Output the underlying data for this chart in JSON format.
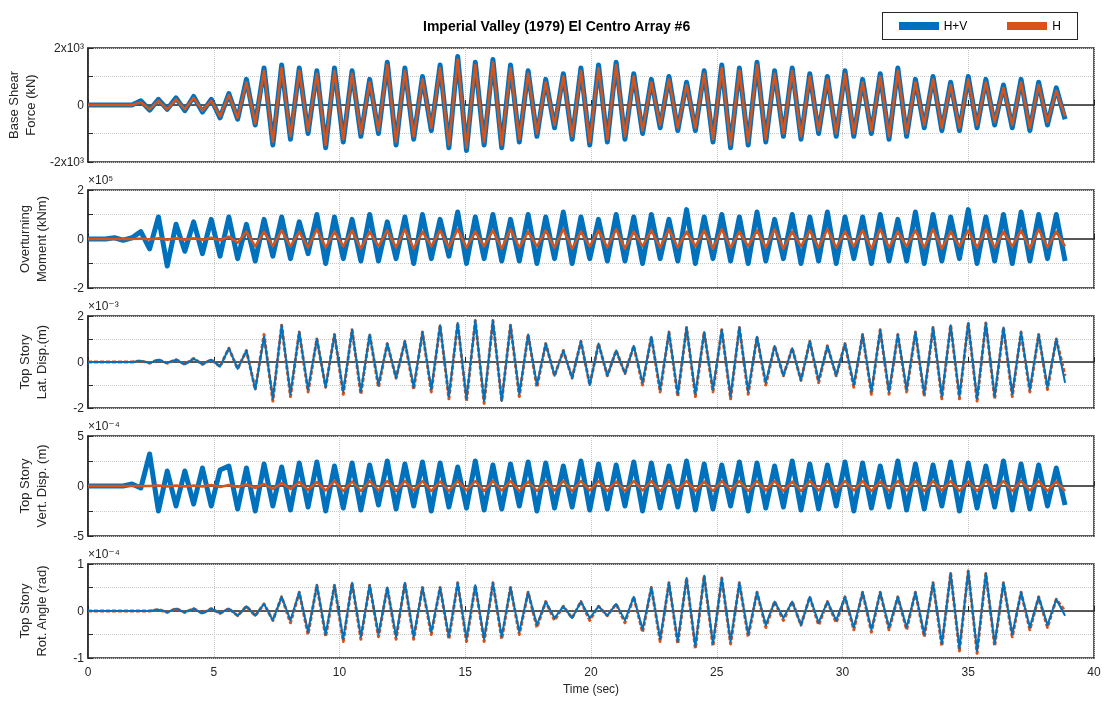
{
  "chart_data": [
    {
      "type": "line",
      "title": "Imperial Valley (1979) El Centro Array #6",
      "ylabel": "Base Shear\nForce (kN)",
      "legend": "top right",
      "grid": true,
      "tick_labels": "y",
      "xlim": [
        0,
        40
      ],
      "xticks": [
        0,
        5,
        10,
        15,
        20,
        25,
        30,
        35,
        40
      ],
      "ylim": [
        -2000,
        2000
      ],
      "yticks": [
        {
          "value": -2000,
          "label": "-2x10³"
        },
        {
          "value": -1000,
          "label": null
        },
        0,
        {
          "value": 1000,
          "label": null
        },
        {
          "value": 2000,
          "label": "2x10³"
        }
      ],
      "x": [
        0,
        0.35,
        0.7,
        1.05,
        1.4,
        1.75,
        2.1,
        2.45,
        2.8,
        3.15,
        3.5,
        3.85,
        4.2,
        4.55,
        4.9,
        5.25,
        5.6,
        5.95,
        6.3,
        6.65,
        7,
        7.35,
        7.7,
        8.05,
        8.4,
        8.75,
        9.1,
        9.45,
        9.8,
        10.15,
        10.5,
        10.85,
        11.2,
        11.55,
        11.9,
        12.25,
        12.6,
        12.95,
        13.3,
        13.65,
        14,
        14.35,
        14.7,
        15.05,
        15.4,
        15.75,
        16.1,
        16.45,
        16.8,
        17.15,
        17.5,
        17.85,
        18.2,
        18.55,
        18.9,
        19.25,
        19.6,
        19.95,
        20.3,
        20.65,
        21,
        21.35,
        21.7,
        22.05,
        22.4,
        22.75,
        23.1,
        23.45,
        23.8,
        24.15,
        24.5,
        24.85,
        25.2,
        25.55,
        25.9,
        26.25,
        26.6,
        26.95,
        27.3,
        27.65,
        28,
        28.35,
        28.7,
        29.05,
        29.4,
        29.75,
        30.1,
        30.45,
        30.8,
        31.15,
        31.5,
        31.85,
        32.2,
        32.55,
        32.9,
        33.25,
        33.6,
        33.95,
        34.3,
        34.65,
        35,
        35.35,
        35.7,
        36.05,
        36.4,
        36.75,
        37.1,
        37.45,
        37.8,
        38.15,
        38.5,
        38.85
      ],
      "series": [
        {
          "name": "H+V",
          "color": "#0072bd",
          "values": [
            0,
            0,
            0,
            0,
            0,
            0,
            150,
            -180,
            200,
            -150,
            250,
            -200,
            300,
            -250,
            200,
            -450,
            400,
            -500,
            900,
            -700,
            1300,
            -1400,
            1400,
            -1200,
            1300,
            -1000,
            1200,
            -1500,
            1300,
            -1300,
            1200,
            -1100,
            900,
            -1000,
            1500,
            -1400,
            1300,
            -1200,
            1000,
            -900,
            1400,
            -1500,
            1700,
            -1600,
            1500,
            -1400,
            1600,
            -1500,
            1400,
            -1300,
            1200,
            -1100,
            900,
            -800,
            1100,
            -1200,
            1300,
            -1400,
            1400,
            -1300,
            1500,
            -1200,
            1100,
            -1000,
            900,
            -800,
            1000,
            -900,
            800,
            -900,
            1200,
            -1300,
            1400,
            -1500,
            1300,
            -1400,
            1500,
            -1300,
            1200,
            -1100,
            1300,
            -1200,
            1100,
            -1000,
            1000,
            -1100,
            1200,
            -1100,
            900,
            -1000,
            1100,
            -1200,
            1300,
            -1100,
            900,
            -800,
            1000,
            -900,
            800,
            -900,
            1000,
            -800,
            900,
            -700,
            700,
            -800,
            900,
            -900,
            800,
            -700,
            600,
            -500
          ]
        },
        {
          "name": "H",
          "color": "#d95319",
          "values": [
            0,
            0,
            0,
            0,
            0,
            0,
            100,
            -150,
            150,
            -150,
            200,
            -150,
            250,
            -200,
            150,
            -400,
            350,
            -450,
            800,
            -650,
            1200,
            -1300,
            1300,
            -1100,
            1200,
            -900,
            1100,
            -1400,
            1200,
            -1200,
            1100,
            -1000,
            800,
            -900,
            1400,
            -1300,
            1200,
            -1100,
            900,
            -800,
            1300,
            -1400,
            1600,
            -1500,
            1400,
            -1300,
            1500,
            -1400,
            1300,
            -1200,
            1100,
            -1000,
            800,
            -700,
            1000,
            -1100,
            1200,
            -1300,
            1300,
            -1200,
            1400,
            -1100,
            1000,
            -900,
            800,
            -700,
            900,
            -800,
            700,
            -800,
            1100,
            -1200,
            1300,
            -1400,
            1200,
            -1300,
            1400,
            -1200,
            1100,
            -1000,
            1200,
            -1100,
            1000,
            -900,
            900,
            -1000,
            1100,
            -1000,
            800,
            -900,
            1000,
            -1100,
            1200,
            -1000,
            800,
            -700,
            900,
            -800,
            700,
            -800,
            900,
            -700,
            800,
            -600,
            600,
            -700,
            800,
            -800,
            700,
            -600,
            500,
            -400
          ]
        }
      ]
    },
    {
      "type": "line",
      "ylabel": "Overturning\nMoment (kNm)",
      "annotations": [
        "×10⁵"
      ],
      "grid": true,
      "tick_labels": "y",
      "xlim": [
        0,
        40
      ],
      "xticks": [
        0,
        5,
        10,
        15,
        20,
        25,
        30,
        35,
        40
      ],
      "ylim": [
        -2,
        2
      ],
      "yticks": [
        -2,
        {
          "value": -1,
          "label": null
        },
        0,
        {
          "value": 1,
          "label": null
        },
        2
      ],
      "x": [
        0,
        0.35,
        0.7,
        1.05,
        1.4,
        1.75,
        2.1,
        2.45,
        2.8,
        3.15,
        3.5,
        3.85,
        4.2,
        4.55,
        4.9,
        5.25,
        5.6,
        5.95,
        6.3,
        6.65,
        7,
        7.35,
        7.7,
        8.05,
        8.4,
        8.75,
        9.1,
        9.45,
        9.8,
        10.15,
        10.5,
        10.85,
        11.2,
        11.55,
        11.9,
        12.25,
        12.6,
        12.95,
        13.3,
        13.65,
        14,
        14.35,
        14.7,
        15.05,
        15.4,
        15.75,
        16.1,
        16.45,
        16.8,
        17.15,
        17.5,
        17.85,
        18.2,
        18.55,
        18.9,
        19.25,
        19.6,
        19.95,
        20.3,
        20.65,
        21,
        21.35,
        21.7,
        22.05,
        22.4,
        22.75,
        23.1,
        23.45,
        23.8,
        24.15,
        24.5,
        24.85,
        25.2,
        25.55,
        25.9,
        26.25,
        26.6,
        26.95,
        27.3,
        27.65,
        28,
        28.35,
        28.7,
        29.05,
        29.4,
        29.75,
        30.1,
        30.45,
        30.8,
        31.15,
        31.5,
        31.85,
        32.2,
        32.55,
        32.9,
        33.25,
        33.6,
        33.95,
        34.3,
        34.65,
        35,
        35.35,
        35.7,
        36.05,
        36.4,
        36.75,
        37.1,
        37.45,
        37.8,
        38.15,
        38.5,
        38.85
      ],
      "series": [
        {
          "color": "#0072bd",
          "values": [
            0,
            0,
            0,
            0.05,
            -0.05,
            0.05,
            0.3,
            -0.4,
            0.9,
            -1.1,
            0.6,
            -0.5,
            0.7,
            -0.6,
            0.8,
            -0.7,
            0.9,
            -0.8,
            0.6,
            -0.9,
            0.8,
            -0.7,
            0.9,
            -0.8,
            0.7,
            -0.6,
            1.0,
            -1.0,
            0.9,
            -0.8,
            0.8,
            -0.9,
            1.0,
            -0.9,
            0.7,
            -0.8,
            0.9,
            -1.0,
            1.0,
            -0.8,
            0.8,
            -0.7,
            1.1,
            -1.0,
            0.9,
            -0.8,
            1.0,
            -0.9,
            0.8,
            -0.9,
            1.0,
            -1.0,
            0.9,
            -0.8,
            1.1,
            -1.0,
            0.9,
            -0.8,
            0.8,
            -0.9,
            1.0,
            -0.9,
            0.9,
            -1.0,
            1.0,
            -0.8,
            0.8,
            -0.9,
            1.2,
            -1.0,
            0.9,
            -0.8,
            1.0,
            -0.9,
            0.9,
            -1.0,
            1.1,
            -0.9,
            0.8,
            -0.8,
            1.0,
            -1.0,
            0.9,
            -0.9,
            1.1,
            -1.0,
            0.9,
            -0.8,
            0.9,
            -1.0,
            1.0,
            -0.9,
            0.8,
            -0.9,
            1.1,
            -1.0,
            1.0,
            -0.9,
            0.9,
            -0.8,
            1.2,
            -1.0,
            0.9,
            -0.9,
            1.0,
            -1.0,
            1.1,
            -0.9,
            1.0,
            -0.8,
            1.0,
            -0.9
          ]
        },
        {
          "color": "#d95319",
          "values": [
            0,
            0,
            0,
            0,
            0,
            0,
            0.02,
            -0.02,
            0.03,
            -0.03,
            0.03,
            -0.03,
            0.03,
            -0.03,
            0.05,
            -0.05,
            0.1,
            -0.15,
            0.3,
            -0.3,
            0.3,
            -0.3,
            0.35,
            -0.3,
            0.3,
            -0.35,
            0.4,
            -0.35,
            0.3,
            -0.3,
            0.35,
            -0.4,
            0.3,
            -0.3,
            0.35,
            -0.35,
            0.4,
            -0.4,
            0.3,
            -0.3,
            0.35,
            -0.35,
            0.4,
            -0.35,
            0.3,
            -0.3,
            0.35,
            -0.4,
            0.4,
            -0.35,
            0.3,
            -0.3,
            0.35,
            -0.35,
            0.4,
            -0.4,
            0.3,
            -0.3,
            0.35,
            -0.35,
            0.4,
            -0.4,
            0.3,
            -0.3,
            0.35,
            -0.35,
            0.4,
            -0.35,
            0.3,
            -0.3,
            0.35,
            -0.4,
            0.4,
            -0.35,
            0.3,
            -0.3,
            0.35,
            -0.35,
            0.4,
            -0.4,
            0.3,
            -0.3,
            0.35,
            -0.35,
            0.4,
            -0.35,
            0.3,
            -0.3,
            0.35,
            -0.4,
            0.4,
            -0.35,
            0.3,
            -0.3,
            0.35,
            -0.35,
            0.4,
            -0.4,
            0.3,
            -0.3,
            0.35,
            -0.35,
            0.4,
            -0.35,
            0.3,
            -0.3,
            0.35,
            -0.4,
            0.4,
            -0.35,
            0.3,
            -0.3
          ]
        }
      ]
    },
    {
      "type": "line",
      "ylabel": "Top Story\nLat. Disp.(m)",
      "annotations": [
        "×10⁻³"
      ],
      "grid": true,
      "tick_labels": "y",
      "xlim": [
        0,
        40
      ],
      "xticks": [
        0,
        5,
        10,
        15,
        20,
        25,
        30,
        35,
        40
      ],
      "ylim": [
        -2,
        2
      ],
      "yticks": [
        -2,
        {
          "value": -1,
          "label": null
        },
        0,
        {
          "value": 1,
          "label": null
        },
        2
      ],
      "x": [
        0,
        0.35,
        0.7,
        1.05,
        1.4,
        1.75,
        2.1,
        2.45,
        2.8,
        3.15,
        3.5,
        3.85,
        4.2,
        4.55,
        4.9,
        5.25,
        5.6,
        5.95,
        6.3,
        6.65,
        7,
        7.35,
        7.7,
        8.05,
        8.4,
        8.75,
        9.1,
        9.45,
        9.8,
        10.15,
        10.5,
        10.85,
        11.2,
        11.55,
        11.9,
        12.25,
        12.6,
        12.95,
        13.3,
        13.65,
        14,
        14.35,
        14.7,
        15.05,
        15.4,
        15.75,
        16.1,
        16.45,
        16.8,
        17.15,
        17.5,
        17.85,
        18.2,
        18.55,
        18.9,
        19.25,
        19.6,
        19.95,
        20.3,
        20.65,
        21,
        21.35,
        21.7,
        22.05,
        22.4,
        22.75,
        23.1,
        23.45,
        23.8,
        24.15,
        24.5,
        24.85,
        25.2,
        25.55,
        25.9,
        26.25,
        26.6,
        26.95,
        27.3,
        27.65,
        28,
        28.35,
        28.7,
        29.05,
        29.4,
        29.75,
        30.1,
        30.45,
        30.8,
        31.15,
        31.5,
        31.85,
        32.2,
        32.55,
        32.9,
        33.25,
        33.6,
        33.95,
        34.3,
        34.65,
        35,
        35.35,
        35.7,
        36.05,
        36.4,
        36.75,
        37.1,
        37.45,
        37.8,
        38.15,
        38.5,
        38.85
      ],
      "series": [
        {
          "color": "#0072bd",
          "values": [
            0,
            0,
            0,
            0,
            0,
            0,
            0.05,
            -0.05,
            0.1,
            -0.05,
            0.1,
            -0.1,
            0.15,
            -0.1,
            0.1,
            -0.2,
            0.6,
            -0.3,
            0.5,
            -1.2,
            1.1,
            -1.6,
            1.6,
            -1.4,
            1.3,
            -1.2,
            1.0,
            -1.1,
            1.2,
            -1.3,
            1.4,
            -1.3,
            1.2,
            -1.0,
            0.8,
            -0.7,
            0.9,
            -1.1,
            1.3,
            -1.2,
            1.6,
            -1.5,
            1.7,
            -1.6,
            1.8,
            -1.7,
            1.8,
            -1.7,
            1.6,
            -1.4,
            1.2,
            -1.0,
            0.8,
            -0.6,
            0.5,
            -0.7,
            0.9,
            -1.0,
            0.8,
            -0.6,
            0.5,
            -0.5,
            0.7,
            -0.9,
            1.1,
            -1.2,
            1.3,
            -1.4,
            1.5,
            -1.4,
            1.3,
            -1.2,
            1.4,
            -1.5,
            1.5,
            -1.3,
            1.1,
            -0.9,
            0.7,
            -0.6,
            0.6,
            -0.8,
            0.9,
            -0.8,
            0.7,
            -0.6,
            0.8,
            -1.0,
            1.2,
            -1.3,
            1.4,
            -1.3,
            1.2,
            -1.2,
            1.3,
            -1.4,
            1.5,
            -1.5,
            1.6,
            -1.5,
            1.7,
            -1.6,
            1.7,
            -1.5,
            1.5,
            -1.4,
            1.3,
            -1.2,
            1.2,
            -1.1,
            1.0,
            -0.9
          ]
        },
        {
          "color": "#d95319",
          "line_style": "dashed",
          "values": [
            0,
            0,
            0,
            0,
            0,
            0,
            0.05,
            -0.05,
            0.1,
            -0.05,
            0.1,
            -0.1,
            0.15,
            -0.1,
            0.1,
            -0.2,
            0.6,
            -0.3,
            0.5,
            -1.2,
            1.2,
            -1.7,
            1.6,
            -1.5,
            1.3,
            -1.3,
            1.0,
            -1.1,
            1.2,
            -1.4,
            1.4,
            -1.4,
            1.2,
            -1.1,
            0.8,
            -0.7,
            0.9,
            -1.2,
            1.3,
            -1.3,
            1.6,
            -1.6,
            1.7,
            -1.7,
            1.8,
            -1.8,
            1.8,
            -1.7,
            1.6,
            -1.5,
            1.2,
            -1.1,
            0.8,
            -0.6,
            0.5,
            -0.7,
            0.9,
            -1.0,
            0.8,
            -0.6,
            0.5,
            -0.5,
            0.7,
            -1.0,
            1.1,
            -1.3,
            1.3,
            -1.5,
            1.5,
            -1.5,
            1.3,
            -1.3,
            1.4,
            -1.6,
            1.5,
            -1.4,
            1.1,
            -1.0,
            0.7,
            -0.6,
            0.6,
            -0.8,
            0.9,
            -0.9,
            0.7,
            -0.6,
            0.8,
            -1.1,
            1.2,
            -1.4,
            1.4,
            -1.4,
            1.2,
            -1.3,
            1.3,
            -1.5,
            1.5,
            -1.6,
            1.6,
            -1.6,
            1.7,
            -1.7,
            1.7,
            -1.6,
            1.5,
            -1.5,
            1.3,
            -1.3,
            1.2,
            -1.2,
            1.0,
            -0.6
          ]
        }
      ]
    },
    {
      "type": "line",
      "ylabel": "Top Story\nVert. Disp. (m)",
      "annotations": [
        "×10⁻⁴"
      ],
      "grid": true,
      "tick_labels": "y",
      "xlim": [
        0,
        40
      ],
      "xticks": [
        0,
        5,
        10,
        15,
        20,
        25,
        30,
        35,
        40
      ],
      "ylim": [
        -5,
        5
      ],
      "yticks": [
        -5,
        {
          "value": -2.5,
          "label": null
        },
        0,
        {
          "value": 2.5,
          "label": null
        },
        5
      ],
      "x": [
        0,
        0.35,
        0.7,
        1.05,
        1.4,
        1.75,
        2.1,
        2.45,
        2.8,
        3.15,
        3.5,
        3.85,
        4.2,
        4.55,
        4.9,
        5.25,
        5.6,
        5.95,
        6.3,
        6.65,
        7,
        7.35,
        7.7,
        8.05,
        8.4,
        8.75,
        9.1,
        9.45,
        9.8,
        10.15,
        10.5,
        10.85,
        11.2,
        11.55,
        11.9,
        12.25,
        12.6,
        12.95,
        13.3,
        13.65,
        14,
        14.35,
        14.7,
        15.05,
        15.4,
        15.75,
        16.1,
        16.45,
        16.8,
        17.15,
        17.5,
        17.85,
        18.2,
        18.55,
        18.9,
        19.25,
        19.6,
        19.95,
        20.3,
        20.65,
        21,
        21.35,
        21.7,
        22.05,
        22.4,
        22.75,
        23.1,
        23.45,
        23.8,
        24.15,
        24.5,
        24.85,
        25.2,
        25.55,
        25.9,
        26.25,
        26.6,
        26.95,
        27.3,
        27.65,
        28,
        28.35,
        28.7,
        29.05,
        29.4,
        29.75,
        30.1,
        30.45,
        30.8,
        31.15,
        31.5,
        31.85,
        32.2,
        32.55,
        32.9,
        33.25,
        33.6,
        33.95,
        34.3,
        34.65,
        35,
        35.35,
        35.7,
        36.05,
        36.4,
        36.75,
        37.1,
        37.45,
        37.8,
        38.15,
        38.5,
        38.85
      ],
      "series": [
        {
          "color": "#0072bd",
          "values": [
            0,
            0,
            0,
            0,
            0,
            0.2,
            -0.2,
            3.2,
            -2.5,
            1.5,
            -2.0,
            1.5,
            -1.8,
            1.8,
            -2.0,
            1.6,
            2.0,
            -2.3,
            1.8,
            -2.5,
            2.2,
            -2.0,
            1.9,
            -2.4,
            2.3,
            -2.1,
            2.4,
            -2.5,
            2.0,
            -2.2,
            2.3,
            -2.4,
            2.1,
            -1.9,
            2.5,
            -2.3,
            2.2,
            -2.0,
            2.4,
            -2.5,
            2.3,
            -2.1,
            1.9,
            -2.2,
            2.5,
            -2.4,
            2.1,
            -2.3,
            2.2,
            -2.0,
            2.4,
            -2.5,
            2.3,
            -2.2,
            2.0,
            -2.1,
            2.5,
            -2.4,
            2.2,
            -2.3,
            2.1,
            -2.0,
            2.4,
            -2.5,
            2.3,
            -2.2,
            2.0,
            -2.1,
            2.5,
            -2.4,
            2.2,
            -2.3,
            2.1,
            -2.0,
            2.4,
            -2.5,
            2.3,
            -2.2,
            2.0,
            -2.1,
            2.5,
            -2.4,
            2.2,
            -2.3,
            2.1,
            -2.0,
            2.4,
            -2.5,
            2.3,
            -2.2,
            2.0,
            -2.1,
            2.5,
            -2.4,
            2.2,
            -2.3,
            2.1,
            -2.0,
            2.4,
            -2.5,
            2.3,
            -2.2,
            2.0,
            -2.1,
            2.5,
            -2.4,
            2.2,
            -2.3,
            2.1,
            -2.0,
            1.8,
            -1.9
          ]
        },
        {
          "color": "#d95319",
          "values": [
            0,
            0,
            0,
            0,
            0,
            0,
            0,
            0,
            0.05,
            -0.05,
            0.05,
            -0.05,
            0.05,
            -0.05,
            0.1,
            -0.1,
            0.1,
            -0.1,
            0.15,
            -0.2,
            0.2,
            -0.3,
            0.3,
            -0.3,
            0.4,
            -0.4,
            0.4,
            -0.45,
            0.5,
            -0.5,
            0.45,
            -0.5,
            0.5,
            -0.45,
            0.5,
            -0.5,
            0.5,
            -0.45,
            0.5,
            -0.5,
            0.45,
            -0.5,
            0.5,
            -0.45,
            0.5,
            -0.5,
            0.5,
            -0.45,
            0.5,
            -0.5,
            0.45,
            -0.5,
            0.5,
            -0.45,
            0.5,
            -0.5,
            0.5,
            -0.45,
            0.5,
            -0.5,
            0.45,
            -0.5,
            0.5,
            -0.45,
            0.5,
            -0.5,
            0.5,
            -0.45,
            0.5,
            -0.5,
            0.45,
            -0.5,
            0.5,
            -0.45,
            0.5,
            -0.5,
            0.5,
            -0.45,
            0.5,
            -0.5,
            0.45,
            -0.5,
            0.5,
            -0.45,
            0.5,
            -0.5,
            0.5,
            -0.45,
            0.5,
            -0.5,
            0.45,
            -0.5,
            0.5,
            -0.45,
            0.5,
            -0.5,
            0.5,
            -0.45,
            0.5,
            -0.5,
            0.45,
            -0.5,
            0.5,
            -0.45,
            0.5,
            -0.5,
            0.5,
            -0.45,
            0.5,
            -0.5,
            0.45,
            -0.5
          ]
        }
      ]
    },
    {
      "type": "line",
      "ylabel": "Top Story\nRot. Angle (rad)",
      "xlabel": "Time (sec)",
      "annotations": [
        "×10⁻⁴"
      ],
      "grid": true,
      "xlim": [
        0,
        40
      ],
      "xticks": [
        0,
        5,
        10,
        15,
        20,
        25,
        30,
        35,
        40
      ],
      "ylim": [
        -1,
        1
      ],
      "yticks": [
        -1,
        {
          "value": -0.5,
          "label": null
        },
        0,
        {
          "value": 0.5,
          "label": null
        },
        1
      ],
      "x": [
        0,
        0.35,
        0.7,
        1.05,
        1.4,
        1.75,
        2.1,
        2.45,
        2.8,
        3.15,
        3.5,
        3.85,
        4.2,
        4.55,
        4.9,
        5.25,
        5.6,
        5.95,
        6.3,
        6.65,
        7,
        7.35,
        7.7,
        8.05,
        8.4,
        8.75,
        9.1,
        9.45,
        9.8,
        10.15,
        10.5,
        10.85,
        11.2,
        11.55,
        11.9,
        12.25,
        12.6,
        12.95,
        13.3,
        13.65,
        14,
        14.35,
        14.7,
        15.05,
        15.4,
        15.75,
        16.1,
        16.45,
        16.8,
        17.15,
        17.5,
        17.85,
        18.2,
        18.55,
        18.9,
        19.25,
        19.6,
        19.95,
        20.3,
        20.65,
        21,
        21.35,
        21.7,
        22.05,
        22.4,
        22.75,
        23.1,
        23.45,
        23.8,
        24.15,
        24.5,
        24.85,
        25.2,
        25.55,
        25.9,
        26.25,
        26.6,
        26.95,
        27.3,
        27.65,
        28,
        28.35,
        28.7,
        29.05,
        29.4,
        29.75,
        30.1,
        30.45,
        30.8,
        31.15,
        31.5,
        31.85,
        32.2,
        32.55,
        32.9,
        33.25,
        33.6,
        33.95,
        34.3,
        34.65,
        35,
        35.35,
        35.7,
        36.05,
        36.4,
        36.75,
        37.1,
        37.45,
        37.8,
        38.15,
        38.5,
        38.85
      ],
      "series": [
        {
          "color": "#0072bd",
          "values": [
            0,
            0,
            0,
            0,
            0,
            0,
            0,
            0,
            0.03,
            -0.03,
            0.05,
            -0.03,
            0.05,
            -0.05,
            0.05,
            -0.05,
            0.05,
            -0.1,
            0.1,
            -0.1,
            0.15,
            -0.2,
            0.3,
            -0.2,
            0.4,
            -0.45,
            0.55,
            -0.5,
            0.55,
            -0.6,
            0.6,
            -0.55,
            0.55,
            -0.5,
            0.5,
            -0.55,
            0.6,
            -0.55,
            0.5,
            -0.45,
            0.5,
            -0.55,
            0.6,
            -0.6,
            0.55,
            -0.6,
            0.6,
            -0.55,
            0.5,
            -0.45,
            0.4,
            -0.3,
            0.2,
            -0.15,
            0.1,
            -0.15,
            0.2,
            -0.15,
            0.1,
            -0.1,
            0.15,
            -0.2,
            0.3,
            -0.4,
            0.5,
            -0.6,
            0.6,
            -0.65,
            0.7,
            -0.75,
            0.75,
            -0.7,
            0.7,
            -0.65,
            0.6,
            -0.5,
            0.4,
            -0.3,
            0.2,
            -0.15,
            0.2,
            -0.3,
            0.3,
            -0.25,
            0.2,
            -0.2,
            0.3,
            -0.35,
            0.4,
            -0.4,
            0.4,
            -0.35,
            0.3,
            -0.35,
            0.4,
            -0.5,
            0.6,
            -0.7,
            0.8,
            -0.8,
            0.85,
            -0.85,
            0.8,
            -0.7,
            0.6,
            -0.5,
            0.4,
            -0.35,
            0.3,
            -0.3,
            0.25,
            -0.1
          ]
        },
        {
          "color": "#d95319",
          "line_style": "dashed",
          "values": [
            0,
            0,
            0,
            0,
            0,
            0,
            0,
            0,
            0.03,
            -0.03,
            0.05,
            -0.03,
            0.05,
            -0.05,
            0.05,
            -0.05,
            0.05,
            -0.1,
            0.1,
            -0.1,
            0.15,
            -0.2,
            0.3,
            -0.25,
            0.4,
            -0.5,
            0.55,
            -0.55,
            0.55,
            -0.65,
            0.6,
            -0.6,
            0.55,
            -0.55,
            0.5,
            -0.6,
            0.6,
            -0.6,
            0.5,
            -0.5,
            0.5,
            -0.6,
            0.6,
            -0.65,
            0.55,
            -0.65,
            0.6,
            -0.6,
            0.5,
            -0.5,
            0.4,
            -0.35,
            0.2,
            -0.2,
            0.1,
            -0.15,
            0.2,
            -0.2,
            0.1,
            -0.1,
            0.15,
            -0.25,
            0.3,
            -0.45,
            0.5,
            -0.65,
            0.6,
            -0.7,
            0.7,
            -0.8,
            0.75,
            -0.75,
            0.7,
            -0.7,
            0.6,
            -0.55,
            0.4,
            -0.35,
            0.2,
            -0.2,
            0.2,
            -0.3,
            0.3,
            -0.3,
            0.2,
            -0.25,
            0.3,
            -0.4,
            0.4,
            -0.45,
            0.4,
            -0.4,
            0.3,
            -0.4,
            0.4,
            -0.55,
            0.6,
            -0.75,
            0.8,
            -0.85,
            0.85,
            -0.9,
            0.8,
            -0.75,
            0.6,
            -0.55,
            0.4,
            -0.4,
            0.3,
            -0.35,
            0.25,
            0
          ]
        }
      ]
    }
  ]
}
